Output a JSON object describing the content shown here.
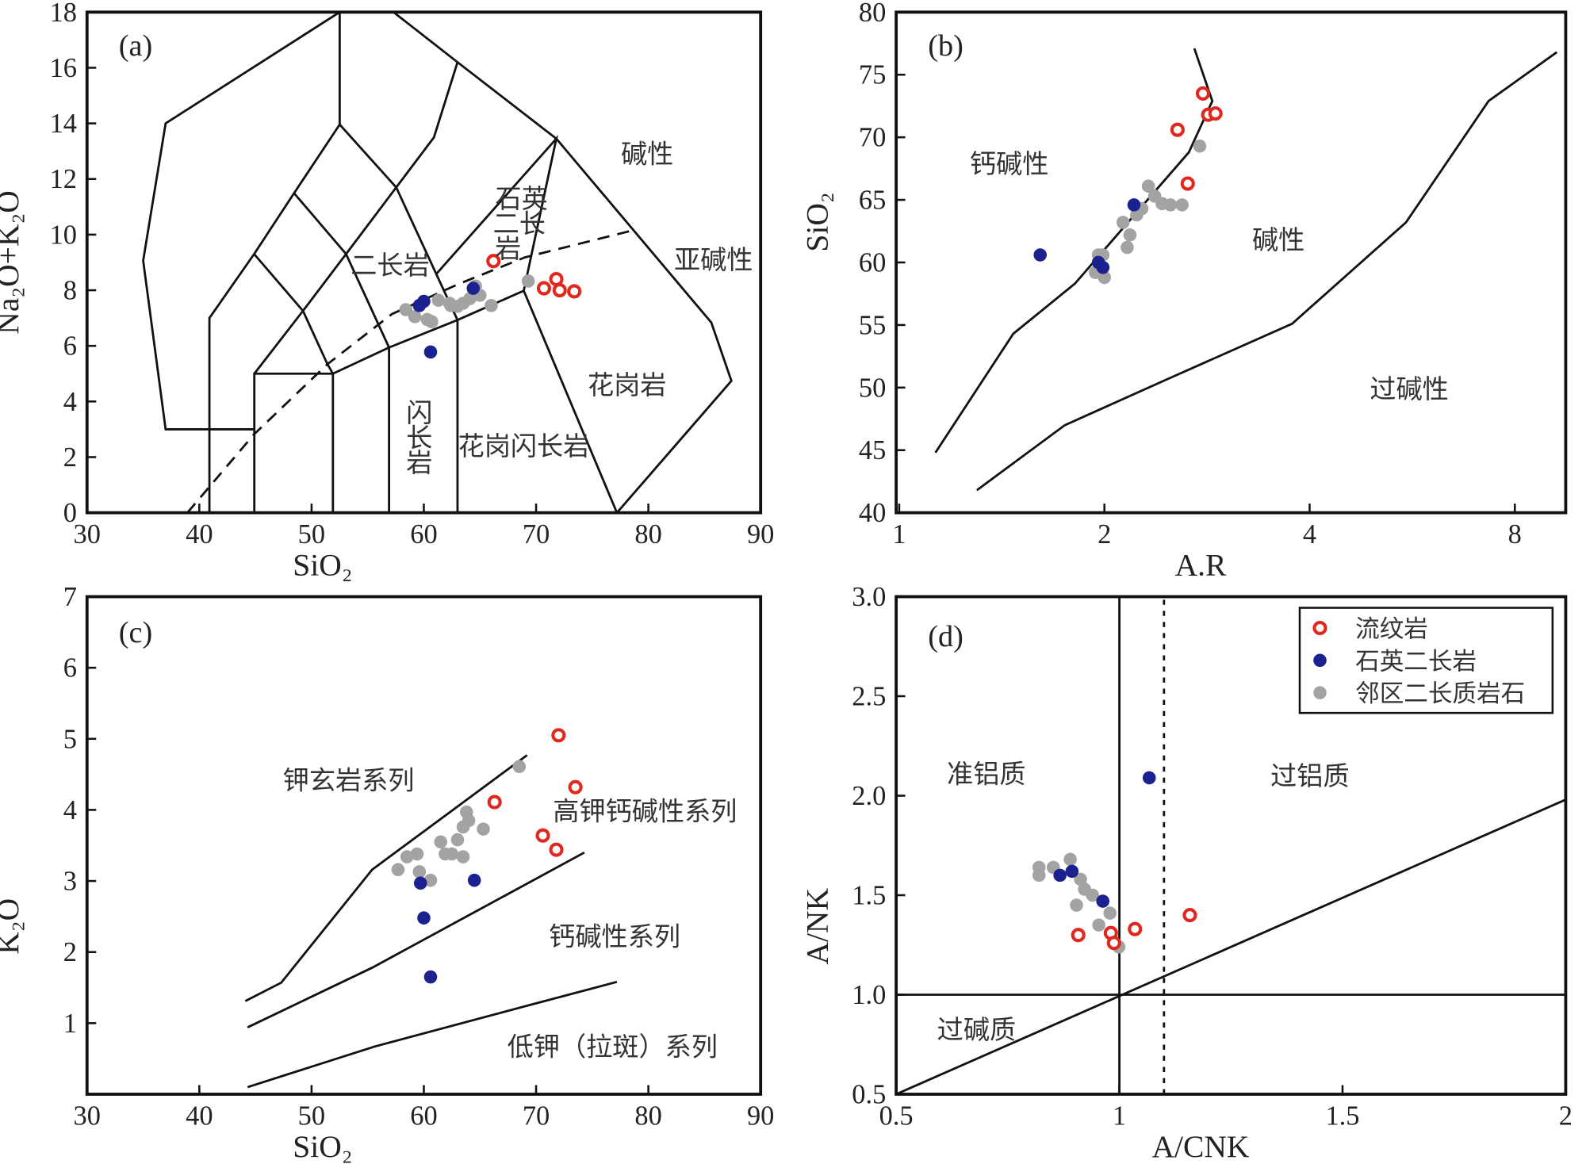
{
  "colors": {
    "rhyolite": "#e0281e",
    "quartz_monzonite": "#1c2190",
    "neighbor": "#a3a3a3"
  },
  "legend": [
    {
      "key": "rhyolite",
      "label": "流纹岩",
      "marker": "ring"
    },
    {
      "key": "quartz_monzonite",
      "label": "石英二长岩",
      "marker": "dot"
    },
    {
      "key": "neighbor",
      "label": "邻区二长质岩石",
      "marker": "dot"
    }
  ],
  "chart_data": [
    {
      "type": "scatter",
      "panel": "(a)",
      "xlabel": "SiO₂",
      "ylabel": "Na₂O+K₂O",
      "xlim": [
        30,
        90
      ],
      "ylim": [
        0,
        18
      ],
      "xscale": "linear",
      "xticks": [
        30,
        40,
        50,
        60,
        70,
        80,
        90
      ],
      "yticks": [
        0,
        2,
        4,
        6,
        8,
        10,
        12,
        14,
        16,
        18
      ],
      "series": {
        "rhyolite": [
          [
            66.2,
            9.05
          ],
          [
            70.7,
            8.07
          ],
          [
            71.8,
            8.4
          ],
          [
            72.1,
            8.0
          ],
          [
            73.4,
            7.96
          ]
        ],
        "quartz_monzonite": [
          [
            59.6,
            7.45
          ],
          [
            60.0,
            7.6
          ],
          [
            60.6,
            5.78
          ],
          [
            64.4,
            8.07
          ]
        ],
        "neighbor": [
          [
            58.4,
            7.3
          ],
          [
            59.2,
            7.05
          ],
          [
            60.3,
            6.95
          ],
          [
            60.7,
            6.87
          ],
          [
            61.3,
            7.64
          ],
          [
            62.3,
            7.53
          ],
          [
            62.4,
            7.45
          ],
          [
            63.0,
            7.42
          ],
          [
            63.5,
            7.53
          ],
          [
            64.1,
            7.7
          ],
          [
            64.6,
            8.15
          ],
          [
            65.0,
            7.82
          ],
          [
            66.0,
            7.45
          ],
          [
            69.3,
            8.33
          ]
        ]
      },
      "lines": [
        {
          "style": "solid",
          "pts": [
            [
              44.9,
              3.0
            ],
            [
              37,
              3.0
            ],
            [
              35,
              9.06
            ],
            [
              37,
              14
            ],
            [
              52.5,
              18
            ]
          ]
        },
        {
          "style": "solid",
          "pts": [
            [
              57.3,
              18
            ],
            [
              63,
              16.2
            ],
            [
              71.8,
              13.45
            ],
            [
              85.6,
              6.84
            ],
            [
              87.4,
              4.74
            ],
            [
              77.2,
              0
            ]
          ]
        },
        {
          "style": "solid",
          "pts": [
            [
              52.5,
              18
            ],
            [
              52.5,
              13.96
            ]
          ]
        },
        {
          "style": "solid",
          "pts": [
            [
              40.9,
              0
            ],
            [
              40.9,
              7.0
            ],
            [
              44.88,
              9.3
            ],
            [
              48.44,
              11.49
            ],
            [
              52.5,
              13.96
            ],
            [
              57.54,
              11.7
            ],
            [
              60.9,
              13.5
            ],
            [
              63,
              16.2
            ]
          ]
        },
        {
          "style": "solid",
          "pts": [
            [
              44.88,
              9.3
            ],
            [
              49.23,
              7.26
            ],
            [
              51.41,
              5.34
            ],
            [
              51.9,
              5.0
            ]
          ]
        },
        {
          "style": "solid",
          "pts": [
            [
              48.44,
              11.49
            ],
            [
              53.07,
              9.3
            ],
            [
              56.9,
              5.94
            ]
          ]
        },
        {
          "style": "solid",
          "pts": [
            [
              53.07,
              9.3
            ],
            [
              57.54,
              11.7
            ],
            [
              63,
              6.93
            ]
          ]
        },
        {
          "style": "solid",
          "pts": [
            [
              49.23,
              7.26
            ],
            [
              53.07,
              9.3
            ]
          ]
        },
        {
          "style": "solid",
          "pts": [
            [
              44.9,
              5.0
            ],
            [
              49.23,
              7.26
            ]
          ]
        },
        {
          "style": "solid",
          "pts": [
            [
              44.9,
              0
            ],
            [
              44.9,
              5.0
            ],
            [
              51.9,
              5.0
            ],
            [
              56.9,
              5.94
            ],
            [
              63,
              6.93
            ],
            [
              68.9,
              7.98
            ],
            [
              71.8,
              13.45
            ],
            [
              61.1,
              8.58
            ]
          ]
        },
        {
          "style": "solid",
          "pts": [
            [
              51.9,
              0
            ],
            [
              51.9,
              5.0
            ]
          ]
        },
        {
          "style": "solid",
          "pts": [
            [
              56.9,
              0
            ],
            [
              56.9,
              5.94
            ]
          ]
        },
        {
          "style": "solid",
          "pts": [
            [
              63,
              0
            ],
            [
              63,
              6.93
            ]
          ]
        },
        {
          "style": "solid",
          "pts": [
            [
              68.9,
              7.98
            ],
            [
              77.2,
              0
            ]
          ]
        },
        {
          "style": "dashed",
          "pts": [
            [
              38.94,
              0
            ],
            [
              44.88,
              2.82
            ],
            [
              51.41,
              5.34
            ],
            [
              57.15,
              7.14
            ],
            [
              63.08,
              8.22
            ],
            [
              69.0,
              9.18
            ],
            [
              78.5,
              10.14
            ]
          ]
        }
      ],
      "annotations": [
        {
          "text": "碱性",
          "x": 79.9,
          "y": 12.9
        },
        {
          "text": "亚碱性",
          "x": 85.8,
          "y": 9.1
        },
        {
          "text": "石英",
          "x": 68.7,
          "y": 11.3
        },
        {
          "text": "二长",
          "x": 68.5,
          "y": 10.4
        },
        {
          "text": "岩",
          "x": 67.5,
          "y": 9.5
        },
        {
          "text": "二长岩",
          "x": 57.0,
          "y": 8.9
        },
        {
          "text": "闪",
          "x": 59.6,
          "y": 3.6
        },
        {
          "text": "长",
          "x": 59.6,
          "y": 2.7
        },
        {
          "text": "岩",
          "x": 59.6,
          "y": 1.8
        },
        {
          "text": "花岗闪长岩",
          "x": 68.9,
          "y": 2.4
        },
        {
          "text": "花岗岩",
          "x": 78.1,
          "y": 4.6
        }
      ]
    },
    {
      "type": "scatter",
      "panel": "(b)",
      "xlabel": "A.R",
      "ylabel": "SiO₂",
      "xlim": [
        1,
        9.5
      ],
      "ylim": [
        40,
        80
      ],
      "xscale": "log2",
      "xticks": [
        1,
        2,
        4,
        8
      ],
      "yticks": [
        40,
        45,
        50,
        55,
        60,
        65,
        70,
        75,
        80
      ],
      "series": {
        "rhyolite": [
          [
            2.79,
            73.5
          ],
          [
            2.84,
            71.8
          ],
          [
            2.91,
            71.9
          ],
          [
            2.56,
            70.6
          ],
          [
            2.65,
            66.3
          ]
        ],
        "quartz_monzonite": [
          [
            1.61,
            60.6
          ],
          [
            1.96,
            60.0
          ],
          [
            1.99,
            59.6
          ],
          [
            2.21,
            64.6
          ]
        ],
        "neighbor": [
          [
            2.76,
            69.3
          ],
          [
            2.32,
            66.1
          ],
          [
            2.37,
            65.3
          ],
          [
            2.43,
            64.7
          ],
          [
            2.5,
            64.6
          ],
          [
            2.6,
            64.6
          ],
          [
            2.27,
            64.3
          ],
          [
            2.23,
            63.8
          ],
          [
            2.13,
            63.2
          ],
          [
            2.18,
            62.2
          ],
          [
            2.16,
            61.2
          ],
          [
            1.96,
            60.6
          ],
          [
            1.99,
            60.6
          ],
          [
            1.94,
            59.2
          ],
          [
            2.0,
            58.8
          ]
        ]
      },
      "lines": [
        {
          "style": "solid",
          "pts": [
            [
              1.13,
              44.8
            ],
            [
              1.47,
              54.3
            ],
            [
              1.81,
              58.3
            ],
            [
              2.23,
              64.0
            ],
            [
              2.66,
              68.8
            ],
            [
              2.88,
              72.9
            ],
            [
              2.71,
              77.1
            ]
          ]
        },
        {
          "style": "solid",
          "pts": [
            [
              1.3,
              41.8
            ],
            [
              1.75,
              47.0
            ],
            [
              2.48,
              50.7
            ],
            [
              3.77,
              55.1
            ],
            [
              5.54,
              63.2
            ],
            [
              7.32,
              72.9
            ],
            [
              9.22,
              76.8
            ]
          ]
        }
      ],
      "annotations": [
        {
          "text": "钙碱性",
          "x": 1.45,
          "y": 67.9
        },
        {
          "text": "碱性",
          "x": 3.6,
          "y": 61.8
        },
        {
          "text": "过碱性",
          "x": 5.6,
          "y": 49.9
        }
      ]
    },
    {
      "type": "scatter",
      "panel": "(c)",
      "xlabel": "SiO₂",
      "ylabel": "K₂O",
      "xlim": [
        30,
        90
      ],
      "ylim": [
        0,
        7
      ],
      "xscale": "linear",
      "xticks": [
        30,
        40,
        50,
        60,
        70,
        80,
        90
      ],
      "yticks": [
        1,
        2,
        3,
        4,
        5,
        6,
        7
      ],
      "series": {
        "rhyolite": [
          [
            72.0,
            5.05
          ],
          [
            73.5,
            4.32
          ],
          [
            66.3,
            4.11
          ],
          [
            70.6,
            3.64
          ],
          [
            71.8,
            3.44
          ]
        ],
        "quartz_monzonite": [
          [
            59.7,
            2.97
          ],
          [
            64.5,
            3.01
          ],
          [
            60.0,
            2.48
          ],
          [
            60.6,
            1.65
          ]
        ],
        "neighbor": [
          [
            68.5,
            4.61
          ],
          [
            63.8,
            3.97
          ],
          [
            63.5,
            3.76
          ],
          [
            64.0,
            3.85
          ],
          [
            63.0,
            3.58
          ],
          [
            61.5,
            3.55
          ],
          [
            65.3,
            3.73
          ],
          [
            62.5,
            3.38
          ],
          [
            63.5,
            3.34
          ],
          [
            58.5,
            3.34
          ],
          [
            59.4,
            3.38
          ],
          [
            57.7,
            3.16
          ],
          [
            59.6,
            3.13
          ],
          [
            60.6,
            3.01
          ],
          [
            61.9,
            3.38
          ]
        ]
      },
      "lines": [
        {
          "style": "solid",
          "pts": [
            [
              44.1,
              1.31
            ],
            [
              47.3,
              1.57
            ],
            [
              55.4,
              3.16
            ],
            [
              69.2,
              4.77
            ]
          ]
        },
        {
          "style": "solid",
          "pts": [
            [
              44.3,
              0.94
            ],
            [
              55.4,
              1.78
            ],
            [
              74.3,
              3.4
            ]
          ]
        },
        {
          "style": "solid",
          "pts": [
            [
              44.3,
              0.1
            ],
            [
              55.6,
              0.67
            ],
            [
              69.1,
              1.24
            ],
            [
              77.2,
              1.58
            ]
          ]
        }
      ],
      "annotations": [
        {
          "text": "钾玄岩系列",
          "x": 53.3,
          "y": 4.42
        },
        {
          "text": "高钾钙碱性系列",
          "x": 79.7,
          "y": 3.98
        },
        {
          "text": "钙碱性系列",
          "x": 77.0,
          "y": 2.22
        },
        {
          "text": "低钾（拉斑）系列",
          "x": 76.8,
          "y": 0.67
        }
      ]
    },
    {
      "type": "scatter",
      "panel": "(d)",
      "xlabel": "A/CNK",
      "ylabel": "A/NK",
      "xlim": [
        0.5,
        2.0
      ],
      "ylim": [
        0.5,
        3.0
      ],
      "xscale": "linear",
      "xticks": [
        0.5,
        1.0,
        1.5,
        2.0
      ],
      "yticks": [
        0.5,
        1.0,
        1.5,
        2.0,
        2.5,
        3.0
      ],
      "series": {
        "rhyolite": [
          [
            0.908,
            1.3
          ],
          [
            0.981,
            1.31
          ],
          [
            0.988,
            1.26
          ],
          [
            1.035,
            1.33
          ],
          [
            1.158,
            1.4
          ]
        ],
        "quartz_monzonite": [
          [
            1.067,
            2.09
          ],
          [
            0.867,
            1.6
          ],
          [
            0.894,
            1.62
          ],
          [
            0.963,
            1.47
          ]
        ],
        "neighbor": [
          [
            0.82,
            1.64
          ],
          [
            0.82,
            1.6
          ],
          [
            0.852,
            1.64
          ],
          [
            0.89,
            1.68
          ],
          [
            0.913,
            1.58
          ],
          [
            0.922,
            1.53
          ],
          [
            0.94,
            1.5
          ],
          [
            0.904,
            1.45
          ],
          [
            0.954,
            1.35
          ],
          [
            0.979,
            1.41
          ],
          [
            0.999,
            1.24
          ]
        ]
      },
      "lines": [
        {
          "style": "solid",
          "pts": [
            [
              1.0,
              0.5
            ],
            [
              1.0,
              3.0
            ]
          ]
        },
        {
          "style": "dotted",
          "pts": [
            [
              1.1,
              0.5
            ],
            [
              1.1,
              3.0
            ]
          ]
        },
        {
          "style": "solid",
          "pts": [
            [
              0.5,
              1.0
            ],
            [
              2.0,
              1.0
            ]
          ]
        },
        {
          "style": "solid",
          "pts": [
            [
              0.5,
              0.5
            ],
            [
              2.0,
              1.98
            ]
          ]
        }
      ],
      "annotations": [
        {
          "text": "准铝质",
          "x": 0.702,
          "y": 2.11
        },
        {
          "text": "过铝质",
          "x": 1.427,
          "y": 2.1
        },
        {
          "text": "过碱质",
          "x": 0.68,
          "y": 0.825
        }
      ],
      "legend_position": "top-right"
    }
  ]
}
